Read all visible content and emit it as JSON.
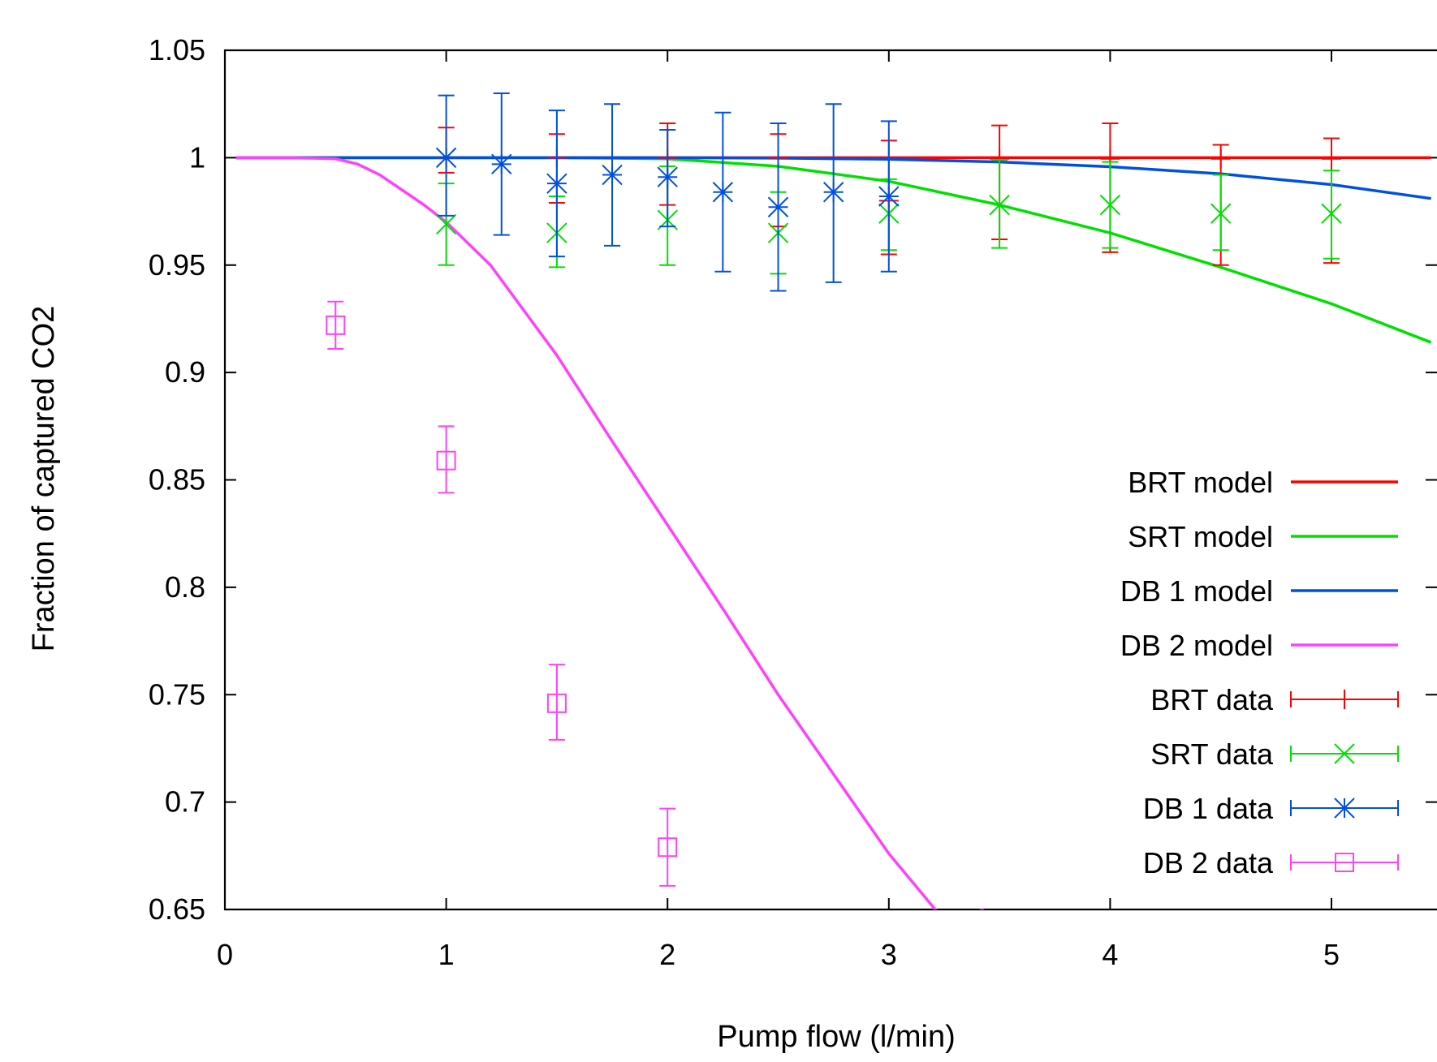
{
  "chart_data": {
    "type": "line",
    "xlabel": "Pump flow (l/min)",
    "ylabel": "Fraction of captured CO2",
    "xlim": [
      0,
      5.45
    ],
    "ylim": [
      0.65,
      1.05
    ],
    "x_ticks": [
      "0",
      "1",
      "2",
      "3",
      "4",
      "5"
    ],
    "y_ticks": [
      "0.65",
      "0.7",
      "0.75",
      "0.8",
      "0.85",
      "0.9",
      "0.95",
      "1",
      "1.05"
    ],
    "legend_position": "right",
    "grid": false,
    "series": [
      {
        "name": "BRT model",
        "kind": "model",
        "color": "#ff0000",
        "x": [
          0.05,
          5.45
        ],
        "y": [
          1.0,
          1.0
        ]
      },
      {
        "name": "SRT model",
        "kind": "model",
        "color": "#00e000",
        "x": [
          0.05,
          0.5,
          1.0,
          1.5,
          2.0,
          2.5,
          3.0,
          3.5,
          4.0,
          4.5,
          5.0,
          5.45
        ],
        "y": [
          1.0,
          1.0,
          1.0,
          1.0,
          0.9995,
          0.996,
          0.989,
          0.978,
          0.965,
          0.949,
          0.932,
          0.914
        ]
      },
      {
        "name": "DB 1 model",
        "kind": "model",
        "color": "#0050e0",
        "x": [
          0.05,
          1.0,
          2.0,
          2.5,
          3.0,
          3.5,
          4.0,
          4.5,
          5.0,
          5.45
        ],
        "y": [
          1.0,
          1.0,
          1.0,
          0.9998,
          0.9993,
          0.998,
          0.9958,
          0.9925,
          0.9875,
          0.981
        ]
      },
      {
        "name": "DB 2 model",
        "kind": "model",
        "color": "#ff40ff",
        "x": [
          0.05,
          0.3,
          0.5,
          0.6,
          0.7,
          0.8,
          0.9,
          1.0,
          1.2,
          1.5,
          1.75,
          2.0,
          2.25,
          2.5,
          2.75,
          3.0,
          3.25,
          3.43
        ],
        "y": [
          1.0,
          1.0,
          0.9995,
          0.997,
          0.992,
          0.985,
          0.978,
          0.97,
          0.95,
          0.908,
          0.868,
          0.829,
          0.79,
          0.75,
          0.713,
          0.676,
          0.645,
          0.65
        ]
      },
      {
        "name": "BRT data",
        "kind": "data",
        "marker": "plus",
        "color": "#ff0000",
        "x": [
          1.0,
          1.5,
          2.0,
          2.5,
          3.0,
          3.5,
          4.0,
          4.5,
          5.0
        ],
        "y": [
          1.0,
          1.0,
          1.0,
          1.0,
          0.98,
          0.9995,
          0.9995,
          0.9995,
          0.9995
        ],
        "yerr_low": [
          0.993,
          0.979,
          0.978,
          0.968,
          0.955,
          0.962,
          0.956,
          0.95,
          0.951
        ],
        "yerr_high": [
          1.014,
          1.011,
          1.016,
          1.011,
          1.008,
          1.015,
          1.016,
          1.006,
          1.009
        ]
      },
      {
        "name": "SRT data",
        "kind": "data",
        "marker": "x",
        "color": "#00e000",
        "x": [
          1.0,
          1.5,
          2.0,
          2.5,
          3.0,
          3.5,
          4.0,
          4.5,
          5.0
        ],
        "y": [
          0.969,
          0.965,
          0.971,
          0.965,
          0.974,
          0.978,
          0.978,
          0.974,
          0.974
        ],
        "yerr_low": [
          0.95,
          0.949,
          0.95,
          0.946,
          0.957,
          0.958,
          0.958,
          0.957,
          0.953
        ],
        "yerr_high": [
          0.988,
          0.982,
          0.996,
          0.984,
          0.99,
          0.999,
          0.998,
          0.992,
          0.994
        ]
      },
      {
        "name": "DB 1 data",
        "kind": "data",
        "marker": "star",
        "color": "#0050e0",
        "x": [
          1.0,
          1.25,
          1.5,
          1.75,
          2.0,
          2.25,
          2.5,
          2.75,
          3.0
        ],
        "y": [
          1.0,
          0.997,
          0.988,
          0.992,
          0.991,
          0.984,
          0.977,
          0.984,
          0.982
        ],
        "yerr_low": [
          0.973,
          0.964,
          0.954,
          0.959,
          0.968,
          0.947,
          0.938,
          0.942,
          0.947
        ],
        "yerr_high": [
          1.029,
          1.03,
          1.022,
          1.025,
          1.013,
          1.021,
          1.016,
          1.025,
          1.017
        ]
      },
      {
        "name": "DB 2 data",
        "kind": "data",
        "marker": "square",
        "color": "#ff40ff",
        "x": [
          0.5,
          1.0,
          1.5,
          2.0
        ],
        "y": [
          0.922,
          0.859,
          0.746,
          0.679
        ],
        "yerr_low": [
          0.911,
          0.844,
          0.729,
          0.661
        ],
        "yerr_high": [
          0.933,
          0.875,
          0.764,
          0.697
        ]
      }
    ]
  }
}
